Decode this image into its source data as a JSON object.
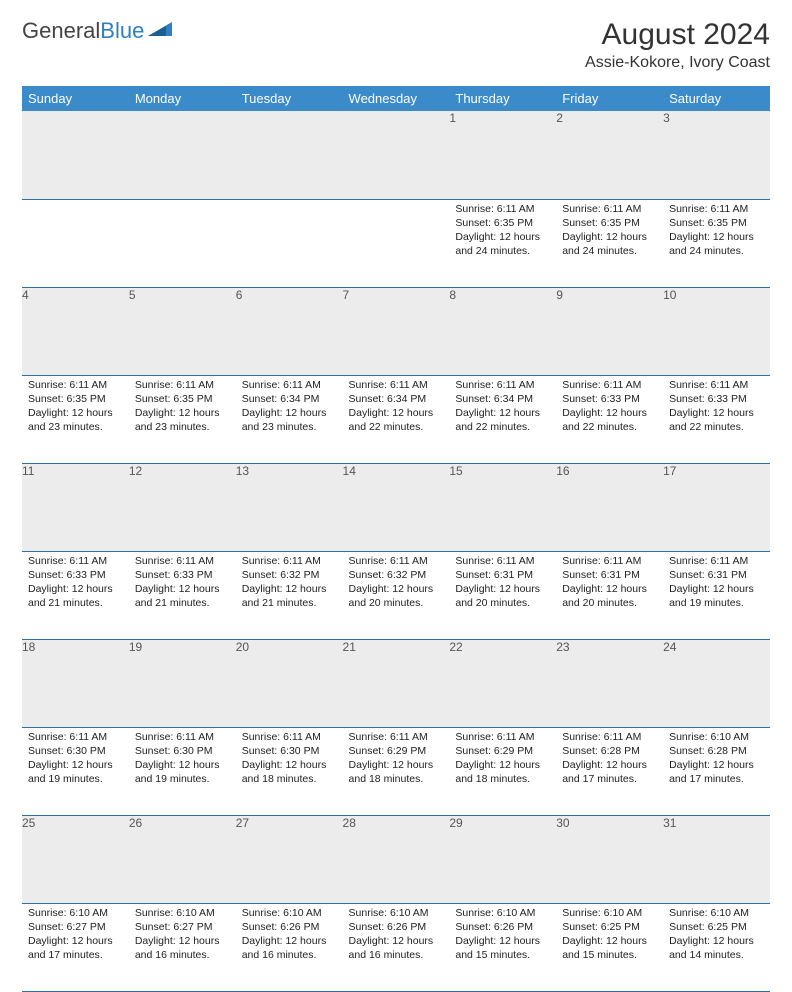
{
  "brand": {
    "part1": "General",
    "part2": "Blue"
  },
  "title": "August 2024",
  "location": "Assie-Kokore, Ivory Coast",
  "colors": {
    "header_bg": "#3b8bca",
    "header_text": "#ffffff",
    "daynum_bg": "#ececec",
    "row_border": "#2f6fa6",
    "brand_blue": "#2f7fc1"
  },
  "weekdays": [
    "Sunday",
    "Monday",
    "Tuesday",
    "Wednesday",
    "Thursday",
    "Friday",
    "Saturday"
  ],
  "weeks": [
    [
      null,
      null,
      null,
      null,
      {
        "n": "1",
        "sunrise": "6:11 AM",
        "sunset": "6:35 PM",
        "dl": "12 hours and 24 minutes."
      },
      {
        "n": "2",
        "sunrise": "6:11 AM",
        "sunset": "6:35 PM",
        "dl": "12 hours and 24 minutes."
      },
      {
        "n": "3",
        "sunrise": "6:11 AM",
        "sunset": "6:35 PM",
        "dl": "12 hours and 24 minutes."
      }
    ],
    [
      {
        "n": "4",
        "sunrise": "6:11 AM",
        "sunset": "6:35 PM",
        "dl": "12 hours and 23 minutes."
      },
      {
        "n": "5",
        "sunrise": "6:11 AM",
        "sunset": "6:35 PM",
        "dl": "12 hours and 23 minutes."
      },
      {
        "n": "6",
        "sunrise": "6:11 AM",
        "sunset": "6:34 PM",
        "dl": "12 hours and 23 minutes."
      },
      {
        "n": "7",
        "sunrise": "6:11 AM",
        "sunset": "6:34 PM",
        "dl": "12 hours and 22 minutes."
      },
      {
        "n": "8",
        "sunrise": "6:11 AM",
        "sunset": "6:34 PM",
        "dl": "12 hours and 22 minutes."
      },
      {
        "n": "9",
        "sunrise": "6:11 AM",
        "sunset": "6:33 PM",
        "dl": "12 hours and 22 minutes."
      },
      {
        "n": "10",
        "sunrise": "6:11 AM",
        "sunset": "6:33 PM",
        "dl": "12 hours and 22 minutes."
      }
    ],
    [
      {
        "n": "11",
        "sunrise": "6:11 AM",
        "sunset": "6:33 PM",
        "dl": "12 hours and 21 minutes."
      },
      {
        "n": "12",
        "sunrise": "6:11 AM",
        "sunset": "6:33 PM",
        "dl": "12 hours and 21 minutes."
      },
      {
        "n": "13",
        "sunrise": "6:11 AM",
        "sunset": "6:32 PM",
        "dl": "12 hours and 21 minutes."
      },
      {
        "n": "14",
        "sunrise": "6:11 AM",
        "sunset": "6:32 PM",
        "dl": "12 hours and 20 minutes."
      },
      {
        "n": "15",
        "sunrise": "6:11 AM",
        "sunset": "6:31 PM",
        "dl": "12 hours and 20 minutes."
      },
      {
        "n": "16",
        "sunrise": "6:11 AM",
        "sunset": "6:31 PM",
        "dl": "12 hours and 20 minutes."
      },
      {
        "n": "17",
        "sunrise": "6:11 AM",
        "sunset": "6:31 PM",
        "dl": "12 hours and 19 minutes."
      }
    ],
    [
      {
        "n": "18",
        "sunrise": "6:11 AM",
        "sunset": "6:30 PM",
        "dl": "12 hours and 19 minutes."
      },
      {
        "n": "19",
        "sunrise": "6:11 AM",
        "sunset": "6:30 PM",
        "dl": "12 hours and 19 minutes."
      },
      {
        "n": "20",
        "sunrise": "6:11 AM",
        "sunset": "6:30 PM",
        "dl": "12 hours and 18 minutes."
      },
      {
        "n": "21",
        "sunrise": "6:11 AM",
        "sunset": "6:29 PM",
        "dl": "12 hours and 18 minutes."
      },
      {
        "n": "22",
        "sunrise": "6:11 AM",
        "sunset": "6:29 PM",
        "dl": "12 hours and 18 minutes."
      },
      {
        "n": "23",
        "sunrise": "6:11 AM",
        "sunset": "6:28 PM",
        "dl": "12 hours and 17 minutes."
      },
      {
        "n": "24",
        "sunrise": "6:10 AM",
        "sunset": "6:28 PM",
        "dl": "12 hours and 17 minutes."
      }
    ],
    [
      {
        "n": "25",
        "sunrise": "6:10 AM",
        "sunset": "6:27 PM",
        "dl": "12 hours and 17 minutes."
      },
      {
        "n": "26",
        "sunrise": "6:10 AM",
        "sunset": "6:27 PM",
        "dl": "12 hours and 16 minutes."
      },
      {
        "n": "27",
        "sunrise": "6:10 AM",
        "sunset": "6:26 PM",
        "dl": "12 hours and 16 minutes."
      },
      {
        "n": "28",
        "sunrise": "6:10 AM",
        "sunset": "6:26 PM",
        "dl": "12 hours and 16 minutes."
      },
      {
        "n": "29",
        "sunrise": "6:10 AM",
        "sunset": "6:26 PM",
        "dl": "12 hours and 15 minutes."
      },
      {
        "n": "30",
        "sunrise": "6:10 AM",
        "sunset": "6:25 PM",
        "dl": "12 hours and 15 minutes."
      },
      {
        "n": "31",
        "sunrise": "6:10 AM",
        "sunset": "6:25 PM",
        "dl": "12 hours and 14 minutes."
      }
    ]
  ]
}
